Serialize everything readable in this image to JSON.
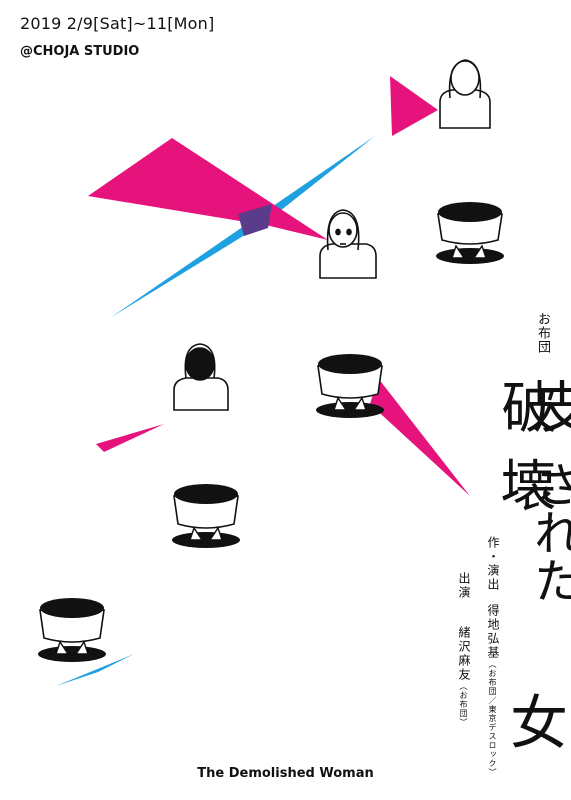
{
  "header": {
    "date": "2019 2/9[Sat]~11[Mon]",
    "venue": "@CHOJA STUDIO"
  },
  "title": {
    "company": "お布団",
    "chars": [
      "破",
      "皮",
      "壊",
      "され",
      "た",
      "女"
    ]
  },
  "title_lines": {
    "line1": "破",
    "line2": "壊",
    "line3": "皮",
    "line4": "された",
    "line5": "女"
  },
  "credits": {
    "direction_label": "作・演出",
    "director": "得地弘基",
    "director_affiliation": "（お布団／東京デスロック）",
    "cast_label": "出演",
    "cast_name": "緒沢麻友",
    "cast_affiliation": "（お布団）"
  },
  "english_title": "The Demolished Woman",
  "colors": {
    "magenta": "#e6137d",
    "cyan": "#1fa0e0",
    "overlap": "#5b3c8c",
    "ink": "#111111",
    "background": "#ffffff"
  }
}
